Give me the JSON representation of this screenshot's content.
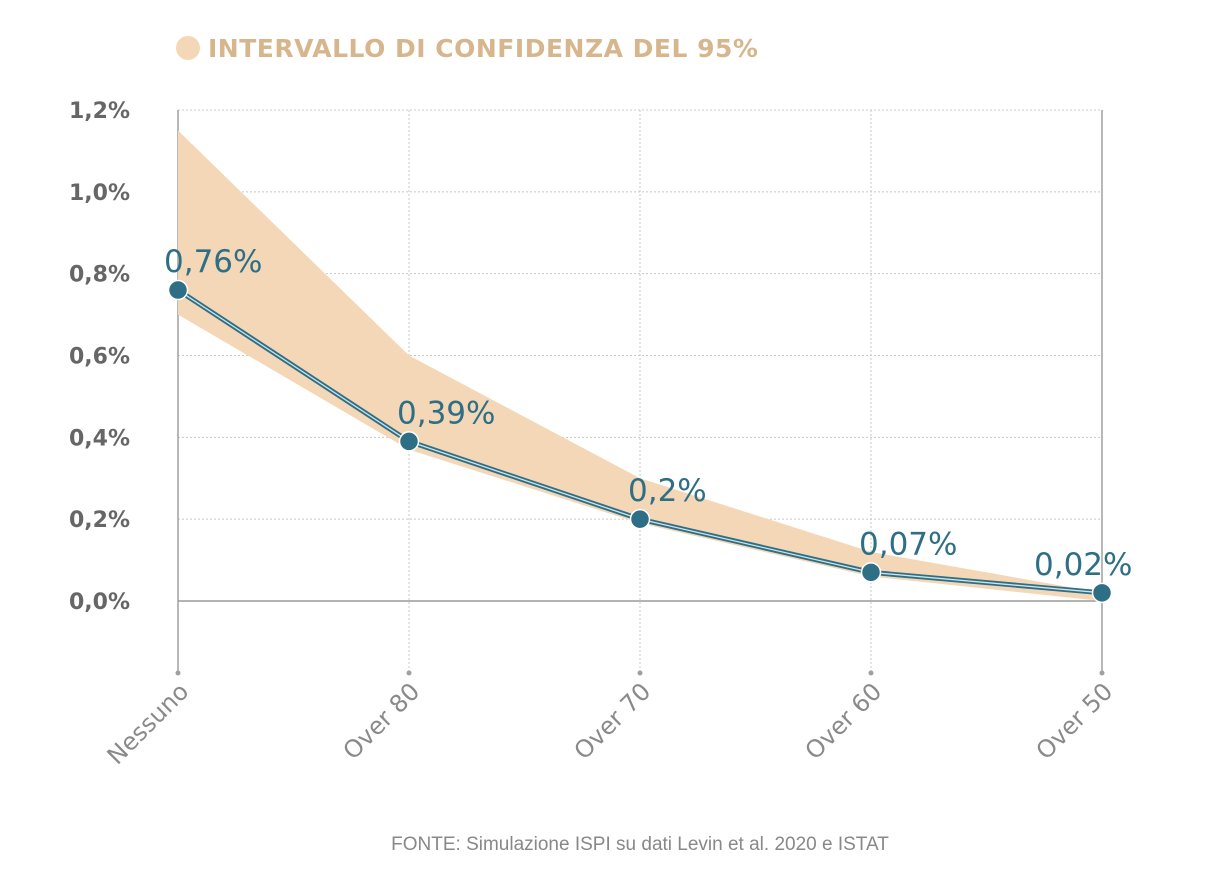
{
  "colors": {
    "band": "#f4d7b7",
    "line": "#2e6f86",
    "legend_text": "#d8b68d",
    "grid": "#c8c8c8",
    "axis": "#a0a0a0"
  },
  "chart_data": {
    "type": "line",
    "categories": [
      "Nessuno",
      "Over 80",
      "Over 70",
      "Over 60",
      "Over 50"
    ],
    "values": [
      0.76,
      0.39,
      0.2,
      0.07,
      0.02
    ],
    "data_labels": [
      "0,76%",
      "0,39%",
      "0,2%",
      "0,07%",
      "0,02%"
    ],
    "confidence_interval": {
      "lower": [
        0.7,
        0.37,
        0.19,
        0.06,
        0.0
      ],
      "upper": [
        1.15,
        0.6,
        0.3,
        0.12,
        0.02
      ]
    },
    "legend": {
      "label": "INTERVALLO DI CONFIDENZA DEL 95%",
      "position": "top-left"
    },
    "ytick_values": [
      0,
      0.2,
      0.4,
      0.6,
      0.8,
      1.0,
      1.2
    ],
    "ytick_labels": [
      "0,0%",
      "0,2%",
      "0,4%",
      "0,6%",
      "0,8%",
      "1,0%",
      "1,2%"
    ],
    "ylim": [
      -0.18,
      1.2
    ],
    "grid": true,
    "source": "FONTE: Simulazione ISPI su dati Levin et al. 2020 e ISTAT"
  }
}
